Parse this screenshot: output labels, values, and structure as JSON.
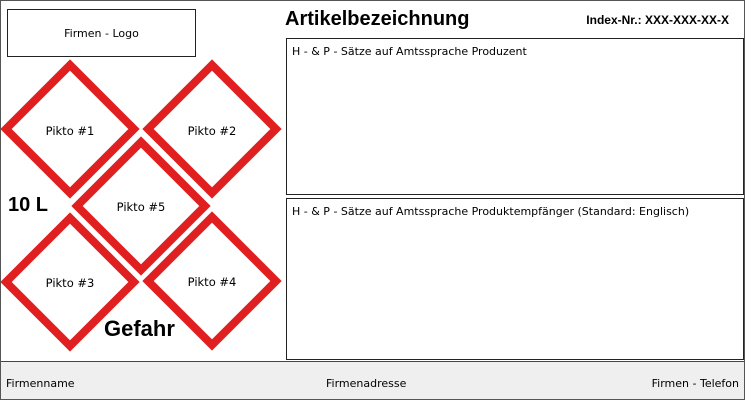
{
  "logo_placeholder": "Firmen - Logo",
  "article_title": "Artikelbezeichnung",
  "index_number": "Index-Nr.: XXX-XXX-XX-X",
  "hp_producer_text": "H - & P - Sätze auf Amtssprache Produzent",
  "hp_recipient_text": "H - & P - Sätze auf Amtssprache Produktempfänger (Standard: Englisch)",
  "volume": "10 L",
  "signal_word": "Gefahr",
  "pictograms": [
    {
      "label": "Pikto #1"
    },
    {
      "label": "Pikto #2"
    },
    {
      "label": "Pikto #5"
    },
    {
      "label": "Pikto #3"
    },
    {
      "label": "Pikto #4"
    }
  ],
  "pictogram_border_color": "#e02020",
  "footer": {
    "company_name": "Firmenname",
    "company_address": "Firmenadresse",
    "company_phone": "Firmen - Telefon"
  }
}
